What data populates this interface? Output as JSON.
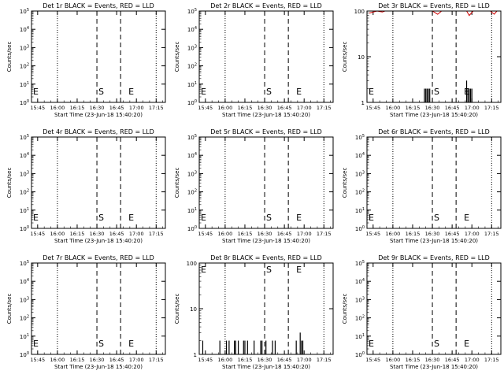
{
  "start_time_label": "Start Time (23-Jun-18 15:40:20)",
  "ylabel": "Counts/sec",
  "event_markers": {
    "start": "S",
    "end": "E"
  },
  "colors": {
    "events": "#000000",
    "lld": "#d00000",
    "axes": "#000000"
  },
  "x_ticks": [
    "15:45",
    "16:00",
    "16:15",
    "16:30",
    "16:45",
    "17:00",
    "17:15"
  ],
  "chart_data": [
    {
      "type": "line",
      "title": "Det 1r BLACK = Events, RED = LLD",
      "scale": "log",
      "y_ticks": [
        "10^0",
        "10^1",
        "10^2",
        "10^3",
        "10^4",
        "10^5"
      ],
      "events": [],
      "lld": []
    },
    {
      "type": "line",
      "title": "Det 2r BLACK = Events, RED = LLD",
      "scale": "log",
      "y_ticks": [
        "10^0",
        "10^1",
        "10^2",
        "10^3",
        "10^4",
        "10^5"
      ],
      "events": [],
      "lld": []
    },
    {
      "type": "line",
      "title": "Det 3r BLACK = Events, RED = LLD",
      "scale": "log",
      "y_ticks": [
        "1",
        "10",
        "100"
      ],
      "events": [
        {
          "x": "16:24",
          "y": 2
        },
        {
          "x": "16:25",
          "y": 2
        },
        {
          "x": "16:26",
          "y": 2
        },
        {
          "x": "16:27",
          "y": 2
        },
        {
          "x": "16:28",
          "y": 2
        },
        {
          "x": "16:56",
          "y": 3
        },
        {
          "x": "16:57",
          "y": 2
        },
        {
          "x": "16:58",
          "y": 2
        },
        {
          "x": "16:59",
          "y": 2
        },
        {
          "x": "17:00",
          "y": 2
        }
      ],
      "lld": [
        {
          "x": "15:42",
          "y": 90
        },
        {
          "x": "15:48",
          "y": 100
        },
        {
          "x": "15:52",
          "y": 95
        },
        {
          "x": "15:54",
          "y": 100
        },
        {
          "x": "16:30",
          "y": 100
        },
        {
          "x": "16:34",
          "y": 85
        },
        {
          "x": "16:37",
          "y": 100
        },
        {
          "x": "16:56",
          "y": 100
        },
        {
          "x": "16:58",
          "y": 80
        },
        {
          "x": "17:01",
          "y": 100
        },
        {
          "x": "17:14",
          "y": 100
        },
        {
          "x": "17:17",
          "y": 85
        },
        {
          "x": "17:19",
          "y": 100
        }
      ]
    },
    {
      "type": "line",
      "title": "Det 4r BLACK = Events, RED = LLD",
      "scale": "log",
      "y_ticks": [
        "10^0",
        "10^1",
        "10^2",
        "10^3",
        "10^4",
        "10^5"
      ],
      "events": [],
      "lld": []
    },
    {
      "type": "line",
      "title": "Det 5r BLACK = Events, RED = LLD",
      "scale": "log",
      "y_ticks": [
        "10^0",
        "10^1",
        "10^2",
        "10^3",
        "10^4",
        "10^5"
      ],
      "events": [],
      "lld": []
    },
    {
      "type": "line",
      "title": "Det 6r BLACK = Events, RED = LLD",
      "scale": "log",
      "y_ticks": [
        "10^0",
        "10^1",
        "10^2",
        "10^3",
        "10^4",
        "10^5"
      ],
      "events": [],
      "lld": []
    },
    {
      "type": "line",
      "title": "Det 7r BLACK = Events, RED = LLD",
      "scale": "log",
      "y_ticks": [
        "10^0",
        "10^1",
        "10^2",
        "10^3",
        "10^4",
        "10^5"
      ],
      "events": [],
      "lld": []
    },
    {
      "type": "line",
      "title": "Det 8r BLACK = Events, RED = LLD",
      "scale": "log",
      "y_ticks": [
        "1",
        "10",
        "100"
      ],
      "events": [
        {
          "x": "15:43",
          "y": 2
        },
        {
          "x": "15:56",
          "y": 2
        },
        {
          "x": "16:01",
          "y": 2
        },
        {
          "x": "16:03",
          "y": 2
        },
        {
          "x": "16:07",
          "y": 2
        },
        {
          "x": "16:08",
          "y": 2
        },
        {
          "x": "16:10",
          "y": 2
        },
        {
          "x": "16:14",
          "y": 2
        },
        {
          "x": "16:15",
          "y": 2
        },
        {
          "x": "16:17",
          "y": 2
        },
        {
          "x": "16:22",
          "y": 2
        },
        {
          "x": "16:27",
          "y": 2
        },
        {
          "x": "16:28",
          "y": 2
        },
        {
          "x": "16:31",
          "y": 2
        },
        {
          "x": "16:36",
          "y": 2
        },
        {
          "x": "16:38",
          "y": 2
        },
        {
          "x": "16:54",
          "y": 2
        },
        {
          "x": "16:57",
          "y": 3
        },
        {
          "x": "16:58",
          "y": 2
        },
        {
          "x": "16:59",
          "y": 2
        }
      ],
      "lld": []
    },
    {
      "type": "line",
      "title": "Det 9r BLACK = Events, RED = LLD",
      "scale": "log",
      "y_ticks": [
        "10^0",
        "10^1",
        "10^2",
        "10^3",
        "10^4",
        "10^5"
      ],
      "events": [],
      "lld": []
    }
  ]
}
